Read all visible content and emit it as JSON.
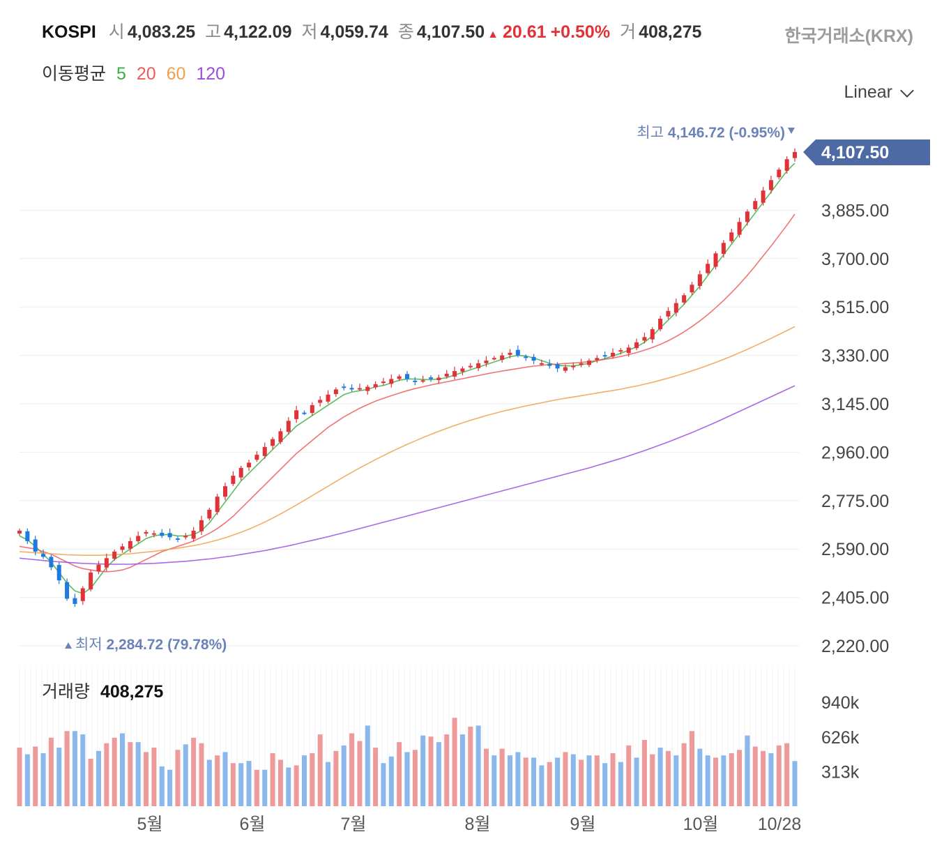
{
  "header": {
    "name": "KOSPI",
    "open_label": "시",
    "open": "4,083.25",
    "high_label": "고",
    "high": "4,122.09",
    "low_label": "저",
    "low": "4,059.74",
    "close_label": "종",
    "close": "4,107.50",
    "change": "20.61",
    "change_pct": "+0.50%",
    "volume_label": "거",
    "volume": "408,275",
    "exchange": "한국거래소(KRX)"
  },
  "moving_average": {
    "label": "이동평균",
    "periods": [
      "5",
      "20",
      "60",
      "120"
    ],
    "colors": [
      "#3cb043",
      "#ef5a5a",
      "#f0a04b",
      "#9b4de0"
    ]
  },
  "scale_selector": "Linear",
  "colors": {
    "up": "#e03238",
    "down": "#1f7ae0",
    "vol_up": "#ef9a9a",
    "vol_down": "#8ab8ec",
    "badge": "#4e6aa5",
    "annot": "#6b82b8"
  },
  "chart_data": {
    "type": "candlestick",
    "x_ticks": [
      "5월",
      "6월",
      "7월",
      "8월",
      "9월",
      "10월",
      "10/28"
    ],
    "y_ticks": [
      "2,220.00",
      "2,405.00",
      "2,590.00",
      "2,775.00",
      "2,960.00",
      "3,145.00",
      "3,330.00",
      "3,515.00",
      "3,700.00",
      "3,885.00"
    ],
    "ylim": [
      2220,
      4070
    ],
    "current_price": "4,107.50",
    "high_annotation": {
      "label": "최고",
      "value": "4,146.72 (-0.95%)"
    },
    "low_annotation": {
      "label": "최저",
      "value": "2,284.72 (79.78%)"
    },
    "close_series": [
      2660,
      2620,
      2580,
      2560,
      2520,
      2470,
      2400,
      2380,
      2440,
      2500,
      2530,
      2555,
      2580,
      2600,
      2620,
      2640,
      2655,
      2650,
      2640,
      2635,
      2630,
      2640,
      2660,
      2700,
      2740,
      2790,
      2830,
      2870,
      2900,
      2920,
      2950,
      2980,
      3010,
      3040,
      3080,
      3120,
      3110,
      3140,
      3160,
      3180,
      3200,
      3210,
      3200,
      3205,
      3210,
      3220,
      3230,
      3240,
      3250,
      3240,
      3230,
      3235,
      3240,
      3245,
      3260,
      3270,
      3280,
      3290,
      3300,
      3310,
      3320,
      3330,
      3340,
      3330,
      3320,
      3310,
      3300,
      3290,
      3280,
      3285,
      3290,
      3300,
      3310,
      3320,
      3330,
      3340,
      3350,
      3360,
      3380,
      3400,
      3430,
      3470,
      3500,
      3530,
      3560,
      3600,
      3640,
      3680,
      3720,
      3760,
      3800,
      3840,
      3880,
      3920,
      3960,
      4000,
      4040,
      4080,
      4107.5
    ],
    "moving_averages": {
      "ma5": [
        2640,
        2625,
        2600,
        2570,
        2540,
        2500,
        2460,
        2430,
        2420,
        2440,
        2480,
        2520,
        2550,
        2570,
        2590,
        2610,
        2630,
        2640,
        2645,
        2645,
        2640,
        2640,
        2645,
        2660,
        2690,
        2730,
        2770,
        2810,
        2850,
        2880,
        2910,
        2940,
        2970,
        3000,
        3030,
        3060,
        3080,
        3100,
        3120,
        3140,
        3160,
        3180,
        3190,
        3195,
        3200,
        3210,
        3215,
        3225,
        3235,
        3240,
        3240,
        3238,
        3237,
        3240,
        3245,
        3255,
        3265,
        3275,
        3285,
        3295,
        3305,
        3315,
        3325,
        3330,
        3328,
        3320,
        3310,
        3300,
        3292,
        3290,
        3290,
        3294,
        3300,
        3310,
        3318,
        3328,
        3338,
        3350,
        3363,
        3380,
        3405,
        3435,
        3465,
        3495,
        3525,
        3560,
        3595,
        3635,
        3675,
        3715,
        3755,
        3795,
        3835,
        3875,
        3915,
        3955,
        3995,
        4035,
        4065
      ],
      "ma20": [
        2600,
        2595,
        2590,
        2580,
        2570,
        2555,
        2540,
        2525,
        2515,
        2510,
        2505,
        2503,
        2505,
        2510,
        2520,
        2535,
        2550,
        2565,
        2580,
        2590,
        2600,
        2610,
        2620,
        2635,
        2650,
        2668,
        2690,
        2715,
        2745,
        2775,
        2805,
        2835,
        2865,
        2895,
        2925,
        2955,
        2980,
        3005,
        3030,
        3055,
        3075,
        3095,
        3112,
        3128,
        3142,
        3155,
        3166,
        3176,
        3186,
        3195,
        3203,
        3210,
        3217,
        3223,
        3229,
        3235,
        3241,
        3247,
        3253,
        3259,
        3265,
        3270,
        3275,
        3280,
        3285,
        3289,
        3292,
        3295,
        3297,
        3299,
        3301,
        3303,
        3306,
        3310,
        3315,
        3320,
        3326,
        3333,
        3341,
        3350,
        3360,
        3372,
        3386,
        3402,
        3420,
        3440,
        3462,
        3486,
        3512,
        3540,
        3570,
        3602,
        3636,
        3672,
        3710,
        3748,
        3788,
        3828,
        3870
      ],
      "ma60": [
        2580,
        2578,
        2576,
        2574,
        2572,
        2570,
        2568,
        2567,
        2566,
        2566,
        2566,
        2567,
        2568,
        2570,
        2572,
        2575,
        2578,
        2581,
        2585,
        2589,
        2593,
        2598,
        2603,
        2609,
        2616,
        2624,
        2633,
        2643,
        2654,
        2666,
        2679,
        2693,
        2708,
        2724,
        2741,
        2758,
        2776,
        2794,
        2812,
        2830,
        2848,
        2866,
        2883,
        2900,
        2916,
        2932,
        2947,
        2962,
        2976,
        2990,
        3003,
        3016,
        3028,
        3040,
        3051,
        3062,
        3072,
        3082,
        3091,
        3100,
        3108,
        3116,
        3123,
        3130,
        3137,
        3143,
        3149,
        3155,
        3161,
        3166,
        3171,
        3176,
        3181,
        3186,
        3191,
        3196,
        3201,
        3207,
        3213,
        3220,
        3227,
        3235,
        3243,
        3252,
        3261,
        3271,
        3281,
        3292,
        3303,
        3315,
        3327,
        3340,
        3353,
        3367,
        3381,
        3395,
        3410,
        3425,
        3440
      ],
      "ma120": [
        2555,
        2552,
        2549,
        2546,
        2543,
        2541,
        2539,
        2537,
        2535,
        2534,
        2533,
        2532,
        2532,
        2532,
        2532,
        2533,
        2534,
        2535,
        2537,
        2539,
        2541,
        2543,
        2546,
        2549,
        2552,
        2556,
        2560,
        2564,
        2569,
        2574,
        2579,
        2584,
        2590,
        2596,
        2602,
        2609,
        2616,
        2623,
        2630,
        2637,
        2645,
        2652,
        2660,
        2668,
        2676,
        2684,
        2692,
        2700,
        2708,
        2716,
        2724,
        2732,
        2740,
        2748,
        2756,
        2764,
        2772,
        2780,
        2788,
        2796,
        2804,
        2812,
        2820,
        2828,
        2836,
        2844,
        2852,
        2860,
        2868,
        2876,
        2884,
        2892,
        2900,
        2909,
        2918,
        2927,
        2936,
        2946,
        2956,
        2966,
        2977,
        2988,
        2999,
        3011,
        3023,
        3035,
        3048,
        3061,
        3074,
        3088,
        3102,
        3116,
        3130,
        3144,
        3158,
        3172,
        3186,
        3200,
        3214
      ]
    },
    "volume_ticks": [
      "940k",
      "626k",
      "313k"
    ],
    "volume_title": "거래량",
    "volume_value": "408,275",
    "volume_ylim": [
      0,
      1250
    ],
    "volume_series": [
      530,
      470,
      540,
      480,
      620,
      530,
      680,
      680,
      650,
      430,
      500,
      570,
      620,
      660,
      580,
      580,
      490,
      530,
      360,
      330,
      510,
      560,
      620,
      570,
      420,
      460,
      490,
      390,
      390,
      410,
      330,
      330,
      480,
      420,
      350,
      370,
      460,
      480,
      650,
      400,
      500,
      550,
      660,
      590,
      730,
      530,
      390,
      450,
      580,
      490,
      510,
      640,
      630,
      580,
      650,
      800,
      650,
      720,
      730,
      520,
      460,
      520,
      460,
      490,
      440,
      440,
      370,
      400,
      440,
      490,
      470,
      420,
      460,
      460,
      390,
      480,
      400,
      550,
      440,
      600,
      470,
      530,
      500,
      460,
      570,
      680,
      520,
      460,
      440,
      460,
      480,
      510,
      640,
      540,
      500,
      480,
      550,
      570,
      408
    ]
  },
  "volume_up_flags": [
    1,
    0,
    1,
    0,
    1,
    0,
    1,
    0,
    0,
    1,
    0,
    1,
    1,
    0,
    1,
    0,
    1,
    1,
    0,
    0,
    1,
    0,
    1,
    1,
    0,
    1,
    0,
    1,
    0,
    0,
    1,
    0,
    1,
    1,
    0,
    1,
    0,
    1,
    1,
    0,
    1,
    0,
    1,
    1,
    0,
    1,
    0,
    0,
    1,
    0,
    1,
    0,
    1,
    0,
    1,
    1,
    0,
    1,
    0,
    1,
    0,
    1,
    0,
    0,
    1,
    0,
    0,
    1,
    0,
    1,
    0,
    1,
    0,
    1,
    0,
    1,
    0,
    1,
    0,
    1,
    1,
    0,
    1,
    0,
    1,
    1,
    0,
    0,
    1,
    0,
    1,
    1,
    0,
    1,
    1,
    0,
    1,
    1,
    0
  ]
}
